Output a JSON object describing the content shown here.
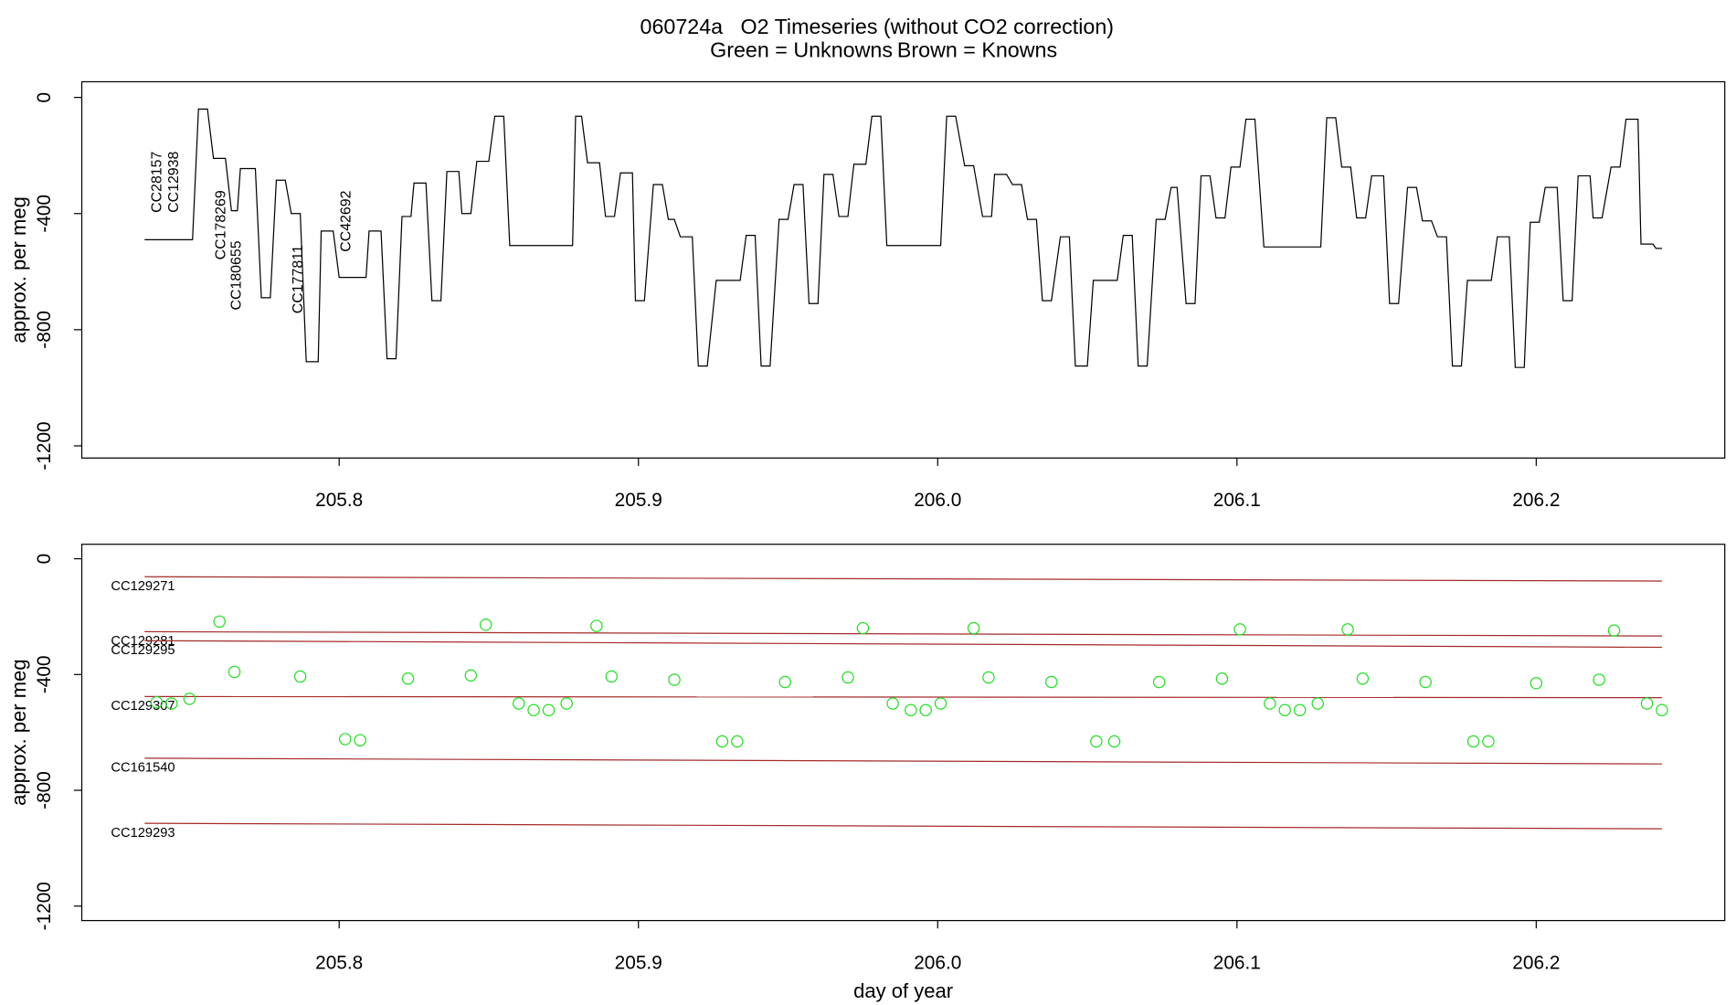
{
  "title": "060724a   O2 Timeseries (without CO2 correction)",
  "subtitle": [
    {
      "text": "Green = Unknowns",
      "color": "#1fe01f"
    },
    {
      "text": "Brown = Knowns",
      "color": "#a52a2a"
    }
  ],
  "chart_data": [
    {
      "type": "line",
      "ylabel": "approx. per meg",
      "xlim": [
        205.714,
        206.263
      ],
      "ylim": [
        -1242,
        54
      ],
      "xticks": [
        205.8,
        205.9,
        {
          "value": 206,
          "label": "206.0"
        },
        206.1,
        206.2
      ],
      "yticks": [
        0,
        -400,
        -800,
        -1200
      ],
      "annotation_color": "#1fe01f",
      "annotations": [
        "CC28157",
        "CC12938",
        "CC178269",
        "CC180655",
        "CC177811",
        "CC42692"
      ],
      "x": [
        205.735,
        205.751,
        205.753,
        205.756,
        205.758,
        205.762,
        205.764,
        205.766,
        205.767,
        205.772,
        205.774,
        205.777,
        205.779,
        205.782,
        205.784,
        205.787,
        205.789,
        205.793,
        205.794,
        205.798,
        205.8,
        205.809,
        205.81,
        205.814,
        205.816,
        205.819,
        205.821,
        205.824,
        205.825,
        205.829,
        205.831,
        205.834,
        205.836,
        205.84,
        205.841,
        205.844,
        205.846,
        205.85,
        205.852,
        205.855,
        205.857,
        205.878,
        205.879,
        205.881,
        205.883,
        205.887,
        205.889,
        205.892,
        205.894,
        205.898,
        205.899,
        205.902,
        205.905,
        205.908,
        205.91,
        205.912,
        205.914,
        205.918,
        205.92,
        205.923,
        205.926,
        205.934,
        205.936,
        205.939,
        205.941,
        205.944,
        205.947,
        205.95,
        205.952,
        205.955,
        205.957,
        205.96,
        205.962,
        205.965,
        205.967,
        205.97,
        205.972,
        205.976,
        205.978,
        205.981,
        205.983,
        206.001,
        206.003,
        206.006,
        206.009,
        206.012,
        206.015,
        206.018,
        206.019,
        206.023,
        206.025,
        206.028,
        206.03,
        206.033,
        206.035,
        206.038,
        206.041,
        206.044,
        206.046,
        206.05,
        206.052,
        206.06,
        206.062,
        206.065,
        206.067,
        206.07,
        206.073,
        206.076,
        206.078,
        206.08,
        206.083,
        206.086,
        206.088,
        206.091,
        206.093,
        206.096,
        206.098,
        206.101,
        206.103,
        206.106,
        206.109,
        206.128,
        206.13,
        206.133,
        206.135,
        206.138,
        206.14,
        206.143,
        206.145,
        206.149,
        206.151,
        206.154,
        206.157,
        206.16,
        206.162,
        206.165,
        206.167,
        206.17,
        206.172,
        206.175,
        206.177,
        206.185,
        206.187,
        206.191,
        206.193,
        206.196,
        206.198,
        206.201,
        206.203,
        206.207,
        206.209,
        206.212,
        206.214,
        206.218,
        206.219,
        206.222,
        206.225,
        206.228,
        206.23,
        206.234,
        206.235,
        206.239,
        206.24,
        206.242
      ],
      "series": [
        {
          "color": "#000000",
          "style": "line",
          "values": [
            -490,
            -490,
            -40,
            -40,
            -210,
            -210,
            -390,
            -390,
            -245,
            -245,
            -690,
            -690,
            -285,
            -285,
            -400,
            -400,
            -910,
            -910,
            -460,
            -460,
            -620,
            -620,
            -460,
            -460,
            -900,
            -900,
            -410,
            -410,
            -295,
            -295,
            -700,
            -700,
            -255,
            -255,
            -400,
            -400,
            -220,
            -220,
            -65,
            -65,
            -510,
            -510,
            -65,
            -65,
            -225,
            -225,
            -410,
            -410,
            -260,
            -260,
            -700,
            -700,
            -300,
            -300,
            -420,
            -420,
            -480,
            -480,
            -925,
            -925,
            -630,
            -630,
            -475,
            -475,
            -925,
            -925,
            -420,
            -420,
            -300,
            -300,
            -710,
            -710,
            -265,
            -265,
            -410,
            -410,
            -230,
            -230,
            -65,
            -65,
            -510,
            -510,
            -65,
            -65,
            -235,
            -235,
            -410,
            -410,
            -265,
            -265,
            -300,
            -300,
            -420,
            -420,
            -700,
            -700,
            -480,
            -480,
            -925,
            -925,
            -630,
            -630,
            -475,
            -475,
            -925,
            -925,
            -420,
            -420,
            -310,
            -310,
            -710,
            -710,
            -270,
            -270,
            -415,
            -415,
            -240,
            -240,
            -75,
            -75,
            -515,
            -515,
            -70,
            -70,
            -240,
            -240,
            -415,
            -415,
            -270,
            -270,
            -710,
            -710,
            -310,
            -310,
            -425,
            -425,
            -480,
            -480,
            -925,
            -925,
            -630,
            -630,
            -480,
            -480,
            -930,
            -930,
            -430,
            -430,
            -310,
            -310,
            -700,
            -700,
            -270,
            -270,
            -415,
            -415,
            -240,
            -240,
            -75,
            -75,
            -505,
            -505,
            -520,
            -520
          ]
        }
      ]
    },
    {
      "type": "scatter",
      "ylabel": "approx. per meg",
      "xlabel": "day of year",
      "xlim": [
        205.714,
        206.263
      ],
      "ylim": [
        -1250,
        50
      ],
      "xticks": [
        205.8,
        205.9,
        {
          "value": 206,
          "label": "206.0"
        },
        206.1,
        206.2
      ],
      "yticks": [
        0,
        -400,
        -800,
        -1200
      ],
      "series": [
        {
          "name": "CC129271",
          "color": "#a52a2a",
          "style": "line",
          "x": [
            205.735,
            206.242
          ],
          "values": [
            -62,
            -77
          ]
        },
        {
          "name": "CC129281",
          "color": "#a52a2a",
          "style": "line",
          "x": [
            205.735,
            206.242
          ],
          "values": [
            -252,
            -267
          ]
        },
        {
          "name": "CC129295",
          "color": "#a52a2a",
          "style": "line",
          "x": [
            205.735,
            206.242
          ],
          "values": [
            -283,
            -306
          ]
        },
        {
          "name": "CC129307",
          "color": "#a52a2a",
          "style": "line",
          "x": [
            205.735,
            206.242
          ],
          "values": [
            -476,
            -480
          ]
        },
        {
          "name": "CC161540",
          "color": "#a52a2a",
          "style": "line",
          "x": [
            205.735,
            206.242
          ],
          "values": [
            -689,
            -709
          ]
        },
        {
          "name": "CC129293",
          "color": "#a52a2a",
          "style": "line",
          "x": [
            205.735,
            206.242
          ],
          "values": [
            -914,
            -933
          ]
        },
        {
          "color": "#1fe01f",
          "style": "points",
          "x": [
            205.739,
            205.744,
            205.75,
            205.76,
            205.765,
            205.787,
            205.802,
            205.807,
            205.823,
            205.844,
            205.849,
            205.86,
            205.865,
            205.87,
            205.876,
            205.886,
            205.891,
            205.912,
            205.928,
            205.933,
            205.949,
            205.97,
            205.975,
            205.985,
            205.991,
            205.996,
            206.001,
            206.012,
            206.017,
            206.038,
            206.053,
            206.059,
            206.074,
            206.095,
            206.101,
            206.111,
            206.116,
            206.121,
            206.127,
            206.137,
            206.142,
            206.163,
            206.179,
            206.184,
            206.2,
            206.221,
            206.226,
            206.237,
            206.242
          ],
          "values": [
            -496,
            -500,
            -484,
            -217,
            -391,
            -407,
            -623,
            -627,
            -414,
            -403,
            -228,
            -500,
            -523,
            -523,
            -500,
            -232,
            -407,
            -418,
            -631,
            -631,
            -426,
            -410,
            -240,
            -500,
            -523,
            -523,
            -500,
            -240,
            -410,
            -426,
            -631,
            -631,
            -426,
            -414,
            -244,
            -500,
            -523,
            -523,
            -500,
            -244,
            -414,
            -426,
            -631,
            -631,
            -430,
            -418,
            -248,
            -500,
            -523
          ]
        }
      ]
    }
  ]
}
